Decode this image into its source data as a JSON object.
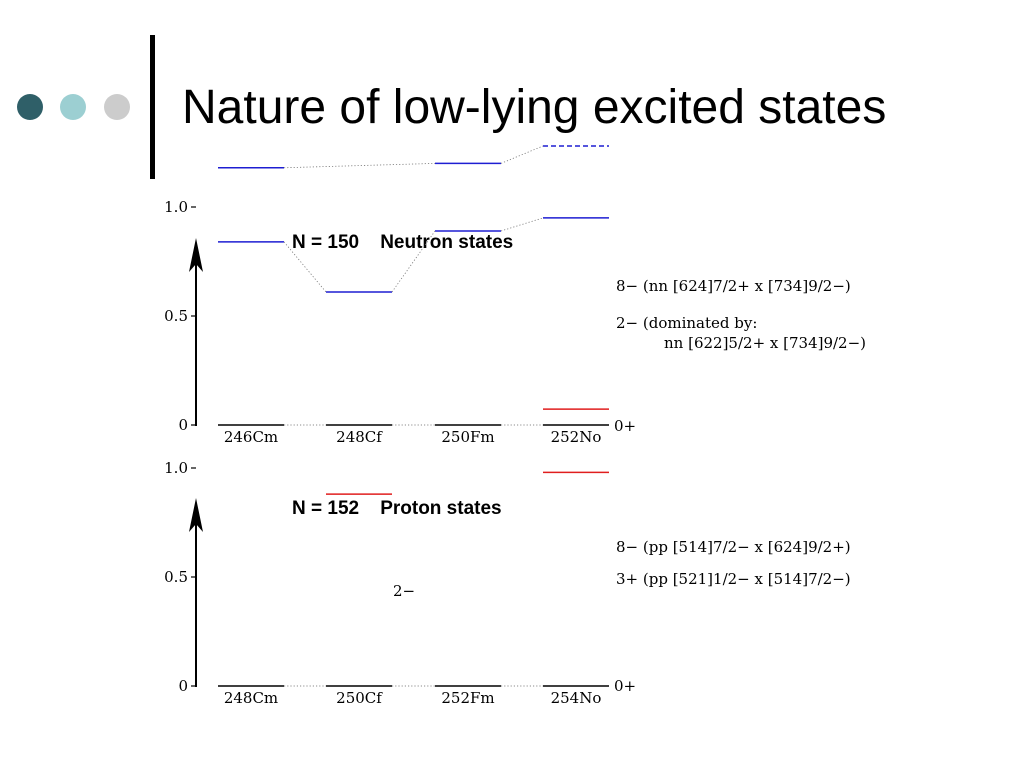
{
  "slide": {
    "title": "Nature of low-lying excited states",
    "bullet_colors": [
      "#2f5f68",
      "#9ccfd2",
      "#cccccc"
    ]
  },
  "colors": {
    "neutron": "#1e1ed2",
    "proton": "#e01e1e",
    "axis": "#000000"
  },
  "chart_data": [
    {
      "type": "level-scheme",
      "title": "N = 150    Neutron states",
      "ylim": [
        0,
        1.5
      ],
      "y_ticks": [
        "0",
        "0.5",
        "1.0"
      ],
      "categories": [
        "246Cm",
        "248Cf",
        "250Fm",
        "252No"
      ],
      "ground_label": "0+",
      "series": [
        {
          "name": "8−",
          "tentative_last": true,
          "values": [
            1.18,
            null,
            1.2,
            1.28
          ]
        },
        {
          "name": "2−",
          "tentative_last": false,
          "values": [
            0.84,
            0.61,
            0.89,
            0.95
          ]
        }
      ],
      "annotations": [
        {
          "text": "8− (nn [624]7/2+ x [734]9/2−)"
        },
        {
          "text": "2− (dominated by:"
        },
        {
          "text": "nn [622]5/2+ x [734]9/2−)"
        }
      ]
    },
    {
      "type": "level-scheme",
      "title": "N = 152    Proton states",
      "ylim": [
        0,
        1.5
      ],
      "y_ticks": [
        "0",
        "0.5",
        "1.0"
      ],
      "categories": [
        "248Cm",
        "250Cf",
        "252Fm",
        "254No"
      ],
      "ground_label": "0+",
      "series": [
        {
          "name": "8−",
          "values": [
            null,
            null,
            null,
            1.27
          ]
        },
        {
          "name": "3+",
          "values": [
            null,
            null,
            null,
            0.98
          ]
        },
        {
          "name": "2−",
          "values": [
            null,
            0.88,
            null,
            null
          ]
        }
      ],
      "annotations": [
        {
          "text": "8− (pp [514]7/2− x [624]9/2+)"
        },
        {
          "text": "3+ (pp [521]1/2− x [514]7/2−)"
        },
        {
          "text": "2−"
        }
      ]
    }
  ]
}
